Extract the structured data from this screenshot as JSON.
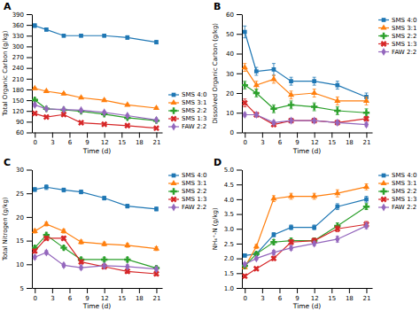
{
  "chart_data": [
    {
      "type": "line",
      "title": "A",
      "x_label": "Time (d)",
      "y_label": "Total Organic Carbon (g/kg)",
      "x": [
        0,
        2,
        5,
        8,
        12,
        16,
        21
      ],
      "xlim": [
        -0.5,
        22
      ],
      "xticks": [
        0,
        3,
        6,
        9,
        12,
        15,
        18,
        21
      ],
      "ylim": [
        60,
        390
      ],
      "yticks": [
        60,
        90,
        120,
        150,
        180,
        210,
        240,
        270,
        300,
        330,
        360,
        390
      ],
      "grid": false,
      "legend": "lower left",
      "series": [
        {
          "name": "SMS 4:0",
          "marker": "square",
          "values": [
            358,
            347,
            330,
            330,
            330,
            325,
            312
          ],
          "yerr": [
            5,
            4,
            4,
            4,
            4,
            5,
            5
          ]
        },
        {
          "name": "SMS 3:1",
          "marker": "triangle",
          "values": [
            183,
            175,
            168,
            157,
            150,
            137,
            128
          ],
          "yerr": [
            3,
            3,
            3,
            3,
            3,
            3,
            3
          ]
        },
        {
          "name": "SMS 2:2",
          "marker": "plus",
          "values": [
            151,
            126,
            123,
            119,
            111,
            101,
            93
          ],
          "yerr": [
            4,
            3,
            3,
            3,
            3,
            3,
            3
          ]
        },
        {
          "name": "SMS 1:3",
          "marker": "x",
          "values": [
            113,
            103,
            110,
            87,
            83,
            79,
            72
          ],
          "yerr": [
            3,
            2,
            4,
            2,
            2,
            2,
            2
          ]
        },
        {
          "name": "FAW 2:2",
          "marker": "diamond",
          "values": [
            137,
            126,
            124,
            122,
            116,
            107,
            95
          ],
          "yerr": [
            5,
            3,
            3,
            3,
            3,
            3,
            3
          ]
        }
      ]
    },
    {
      "type": "line",
      "title": "B",
      "x_label": "Time (d)",
      "y_label": "Dissolved Organic Carbon (g/kg)",
      "x": [
        0,
        2,
        5,
        8,
        12,
        16,
        21
      ],
      "xlim": [
        -0.5,
        22
      ],
      "xticks": [
        0,
        3,
        6,
        9,
        12,
        15,
        18,
        21
      ],
      "ylim": [
        0,
        60
      ],
      "yticks": [
        0,
        10,
        20,
        30,
        40,
        50,
        60
      ],
      "grid": false,
      "legend": "upper right",
      "series": [
        {
          "name": "SMS 4:0",
          "marker": "square",
          "values": [
            51,
            31,
            32,
            26,
            26,
            24,
            18
          ],
          "yerr": [
            3,
            2,
            3,
            2,
            2,
            2,
            2
          ]
        },
        {
          "name": "SMS 3:1",
          "marker": "triangle",
          "values": [
            33,
            24,
            27,
            19,
            20,
            16,
            16
          ],
          "yerr": [
            2,
            2,
            2,
            2,
            2,
            2,
            2
          ]
        },
        {
          "name": "SMS 2:2",
          "marker": "plus",
          "values": [
            24,
            20,
            12,
            14,
            13,
            11,
            10
          ],
          "yerr": [
            2,
            2,
            2,
            2,
            2,
            2,
            2
          ]
        },
        {
          "name": "SMS 1:3",
          "marker": "x",
          "values": [
            15,
            9,
            4,
            6,
            6,
            5,
            7
          ],
          "yerr": [
            2,
            1,
            1,
            1,
            1,
            1,
            1
          ]
        },
        {
          "name": "FAW 2:2",
          "marker": "diamond",
          "values": [
            9,
            9,
            5,
            6,
            6,
            5,
            4
          ],
          "yerr": [
            1,
            1,
            1,
            1,
            1,
            1,
            1
          ]
        }
      ]
    },
    {
      "type": "line",
      "title": "C",
      "x_label": "Time (d)",
      "y_label": "Total Nitrogen (g/kg)",
      "x": [
        0,
        2,
        5,
        8,
        12,
        16,
        21
      ],
      "xlim": [
        -0.5,
        22
      ],
      "xticks": [
        0,
        3,
        6,
        9,
        12,
        15,
        18,
        21
      ],
      "ylim": [
        5,
        30
      ],
      "yticks": [
        5,
        10,
        15,
        20,
        25,
        30
      ],
      "grid": false,
      "legend": "upper right",
      "series": [
        {
          "name": "SMS 4:0",
          "marker": "square",
          "values": [
            25.8,
            26.3,
            25.7,
            25.3,
            24.0,
            22.3,
            21.7
          ],
          "yerr": [
            0.4,
            0.5,
            0.4,
            0.4,
            0.4,
            0.4,
            0.4
          ]
        },
        {
          "name": "SMS 3:1",
          "marker": "triangle",
          "values": [
            17.0,
            18.5,
            17.0,
            14.7,
            14.3,
            14.0,
            13.3
          ],
          "yerr": [
            0.4,
            0.4,
            0.4,
            0.4,
            0.4,
            0.4,
            0.4
          ]
        },
        {
          "name": "SMS 2:2",
          "marker": "plus",
          "values": [
            13.5,
            16.2,
            13.5,
            11.0,
            11.0,
            11.0,
            9.2
          ],
          "yerr": [
            0.4,
            0.4,
            0.4,
            0.4,
            0.4,
            0.4,
            0.4
          ]
        },
        {
          "name": "SMS 1:3",
          "marker": "x",
          "values": [
            12.8,
            15.5,
            15.5,
            10.5,
            9.5,
            8.5,
            8.0
          ],
          "yerr": [
            0.4,
            0.4,
            0.4,
            0.4,
            0.4,
            0.4,
            0.4
          ]
        },
        {
          "name": "FAW 2:2",
          "marker": "diamond",
          "values": [
            11.5,
            12.5,
            9.8,
            9.3,
            9.7,
            9.5,
            9.0
          ],
          "yerr": [
            0.4,
            0.4,
            0.4,
            0.4,
            0.4,
            0.4,
            0.4
          ]
        }
      ]
    },
    {
      "type": "line",
      "title": "D",
      "x_label": "Time (d)",
      "y_label": "NH₄⁺-N (g/kg)",
      "x": [
        0,
        2,
        5,
        8,
        12,
        16,
        21
      ],
      "xlim": [
        -0.5,
        22
      ],
      "xticks": [
        0,
        3,
        6,
        9,
        12,
        15,
        18,
        21
      ],
      "ylim": [
        1.0,
        5.0
      ],
      "yticks": [
        {
          "value": 1.0,
          "label": "1.0"
        },
        1.5,
        {
          "value": 2.0,
          "label": "2.0"
        },
        2.5,
        {
          "value": 3.0,
          "label": "3.0"
        },
        3.5,
        {
          "value": 4.0,
          "label": "4.0"
        },
        4.5,
        {
          "value": 5.0,
          "label": "5.0"
        }
      ],
      "grid": false,
      "legend": "upper left",
      "series": [
        {
          "name": "SMS 4:0",
          "marker": "square",
          "values": [
            2.1,
            2.15,
            2.8,
            3.05,
            3.05,
            3.75,
            4.0
          ],
          "yerr": [
            0.05,
            0.05,
            0.07,
            0.08,
            0.08,
            0.1,
            0.1
          ]
        },
        {
          "name": "SMS 3:1",
          "marker": "triangle",
          "values": [
            1.7,
            2.4,
            4.02,
            4.1,
            4.1,
            4.2,
            4.42
          ],
          "yerr": [
            0.05,
            0.07,
            0.1,
            0.1,
            0.1,
            0.12,
            0.1
          ]
        },
        {
          "name": "SMS 2:2",
          "marker": "plus",
          "values": [
            1.75,
            2.15,
            2.55,
            2.6,
            2.6,
            3.1,
            3.75
          ],
          "yerr": [
            0.05,
            0.05,
            0.08,
            0.08,
            0.08,
            0.1,
            0.1
          ]
        },
        {
          "name": "SMS 1:3",
          "marker": "x",
          "values": [
            1.4,
            1.65,
            2.0,
            2.55,
            2.6,
            3.0,
            3.15
          ],
          "yerr": [
            0.05,
            0.05,
            0.07,
            0.08,
            0.08,
            0.1,
            0.1
          ]
        },
        {
          "name": "FAW 2:2",
          "marker": "diamond",
          "values": [
            1.8,
            2.0,
            2.2,
            2.35,
            2.5,
            2.65,
            3.1
          ],
          "yerr": [
            0.05,
            0.05,
            0.07,
            0.07,
            0.07,
            0.1,
            0.1
          ]
        }
      ]
    }
  ]
}
